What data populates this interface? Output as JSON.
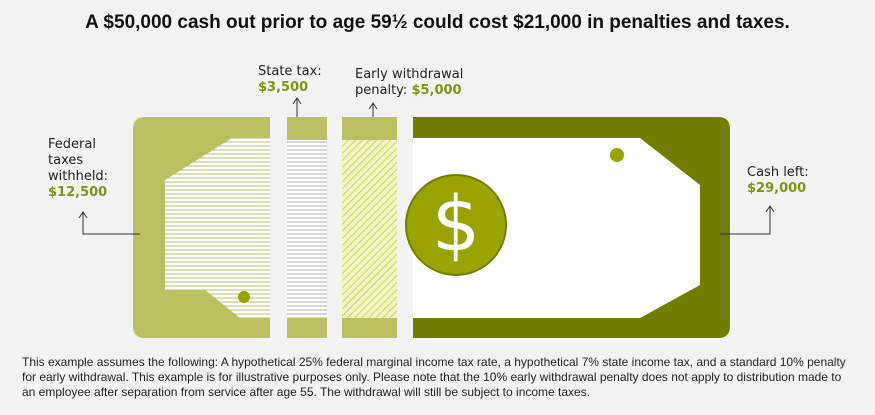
{
  "title": "A $50,000 cash out prior to age 59½ could cost $21,000 in penalties and taxes.",
  "segments": [
    {
      "label": "Federal taxes withheld:",
      "amount": "$12,500"
    },
    {
      "label": "State tax:",
      "amount": "$3,500"
    },
    {
      "label": "Early withdrawal penalty:",
      "amount": "$5,000"
    },
    {
      "label": "Cash left:",
      "amount": "$29,000"
    }
  ],
  "bill_symbol": "$",
  "footnote": "This example assumes the following: A hypothetical 25% federal marginal income tax rate, a hypothetical 7% state income tax, and a standard 10% penalty for early withdrawal. This example is for illustrative purposes only. Please note that the 10% early withdrawal penalty does not apply to distribution made to an employee after separation from service after age 55. The withdrawal will still be subject to income taxes."
}
